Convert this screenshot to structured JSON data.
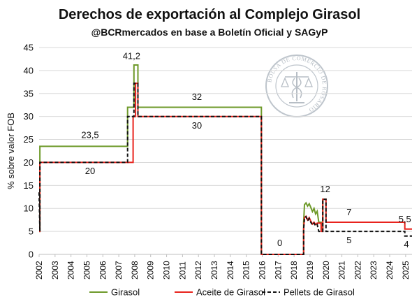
{
  "chart_data": {
    "type": "line",
    "title": "Derechos de exportación al Complejo Girasol",
    "subtitle": "@BCRmercados en base a Boletín Oficial y SAGyP",
    "ylabel": "% sobre valor FOB",
    "xlabel": "",
    "xlim": [
      2002,
      2025.4
    ],
    "ylim": [
      0,
      45
    ],
    "yticks": [
      0,
      5,
      10,
      15,
      20,
      25,
      30,
      35,
      40,
      45
    ],
    "xticks": [
      2002,
      2003,
      2004,
      2005,
      2006,
      2007,
      2008,
      2009,
      2010,
      2011,
      2012,
      2013,
      2014,
      2015,
      2016,
      2017,
      2018,
      2019,
      2020,
      2021,
      2022,
      2023,
      2024,
      2025
    ],
    "grid": "horizontal",
    "legend_position": "bottom",
    "series": [
      {
        "name": "Girasol",
        "color": "#6e9a2a",
        "dash": "solid",
        "x": [
          2002.0,
          2002.05,
          2002.05,
          2007.55,
          2007.55,
          2007.95,
          2007.95,
          2008.2,
          2008.2,
          2015.95,
          2015.95,
          2018.6,
          2018.6,
          2018.65,
          2018.75,
          2018.85,
          2018.95,
          2019.05,
          2019.15,
          2019.25,
          2019.35,
          2019.45,
          2019.55,
          2019.7,
          2019.7,
          2019.8,
          2019.8,
          2019.9
        ],
        "y": [
          5,
          5,
          23.5,
          23.5,
          32,
          32,
          41.2,
          41.2,
          32,
          32,
          0,
          0,
          7,
          10.8,
          11.2,
          10.5,
          11.0,
          10.2,
          9.3,
          10.0,
          8.8,
          9.4,
          7.0,
          7.0,
          5.5,
          5.5,
          12,
          12
        ]
      },
      {
        "name": "Aceite de Girasol",
        "color": "#e8231d",
        "dash": "solid",
        "x": [
          2002.0,
          2002.05,
          2002.05,
          2007.9,
          2007.9,
          2008.05,
          2008.05,
          2008.2,
          2008.2,
          2015.95,
          2015.95,
          2018.6,
          2018.6,
          2018.65,
          2018.75,
          2018.85,
          2018.95,
          2019.05,
          2019.15,
          2019.25,
          2019.35,
          2019.45,
          2019.55,
          2019.7,
          2019.7,
          2019.8,
          2019.8,
          2020.0,
          2020.0,
          2024.95,
          2024.95,
          2025.4
        ],
        "y": [
          5,
          5,
          20,
          20,
          30,
          30,
          37.2,
          37.2,
          30,
          30,
          0,
          0,
          5.5,
          8.0,
          8.3,
          7.5,
          8.0,
          7.2,
          6.6,
          7.0,
          6.5,
          6.8,
          6.8,
          6.8,
          5.0,
          5.0,
          12,
          12,
          7,
          7,
          5.5,
          5.5
        ]
      },
      {
        "name": "Pellets de Girasol",
        "color": "#111111",
        "dash": "dashed",
        "x": [
          2002.0,
          2002.05,
          2002.05,
          2007.55,
          2007.55,
          2007.95,
          2007.95,
          2008.2,
          2008.2,
          2015.95,
          2015.95,
          2018.6,
          2018.6,
          2018.65,
          2018.75,
          2018.85,
          2018.95,
          2019.05,
          2019.15,
          2019.25,
          2019.35,
          2019.45,
          2019.55,
          2019.7,
          2019.7,
          2019.8,
          2019.8,
          2020.0,
          2020.0,
          2024.95,
          2024.95,
          2025.4
        ],
        "y": [
          13.5,
          5,
          20,
          20,
          30,
          30,
          37.2,
          37.2,
          30,
          30,
          0,
          0,
          5.5,
          8.0,
          8.2,
          7.3,
          7.8,
          7.0,
          6.4,
          6.8,
          6.2,
          6.5,
          5.0,
          5.0,
          5.0,
          5.0,
          12,
          12,
          5,
          5,
          4,
          4
        ]
      }
    ],
    "annotations": [
      {
        "text": "23,5",
        "x": 2005.2,
        "y": 25.3,
        "color": "#111111"
      },
      {
        "text": "20",
        "x": 2005.2,
        "y": 17.5,
        "color": "#111111"
      },
      {
        "text": "41,2",
        "x": 2007.8,
        "y": 42.5,
        "color": "#111111"
      },
      {
        "text": "32",
        "x": 2011.9,
        "y": 33.6,
        "color": "#111111"
      },
      {
        "text": "30",
        "x": 2011.9,
        "y": 27.4,
        "color": "#111111"
      },
      {
        "text": "0",
        "x": 2017.1,
        "y": 1.8,
        "color": "#111111"
      },
      {
        "text": "12",
        "x": 2019.95,
        "y": 13.5,
        "color": "#111111"
      },
      {
        "text": "7",
        "x": 2021.45,
        "y": 8.5,
        "color": "#111111"
      },
      {
        "text": "5",
        "x": 2021.45,
        "y": 2.4,
        "color": "#111111"
      },
      {
        "text": "5,5",
        "x": 2024.95,
        "y": 7.0,
        "color": "#111111"
      },
      {
        "text": "4",
        "x": 2025.05,
        "y": 1.5,
        "color": "#111111"
      }
    ]
  },
  "watermark": {
    "text": "BOLSA DE COMERCIO DE ROSARIO"
  }
}
